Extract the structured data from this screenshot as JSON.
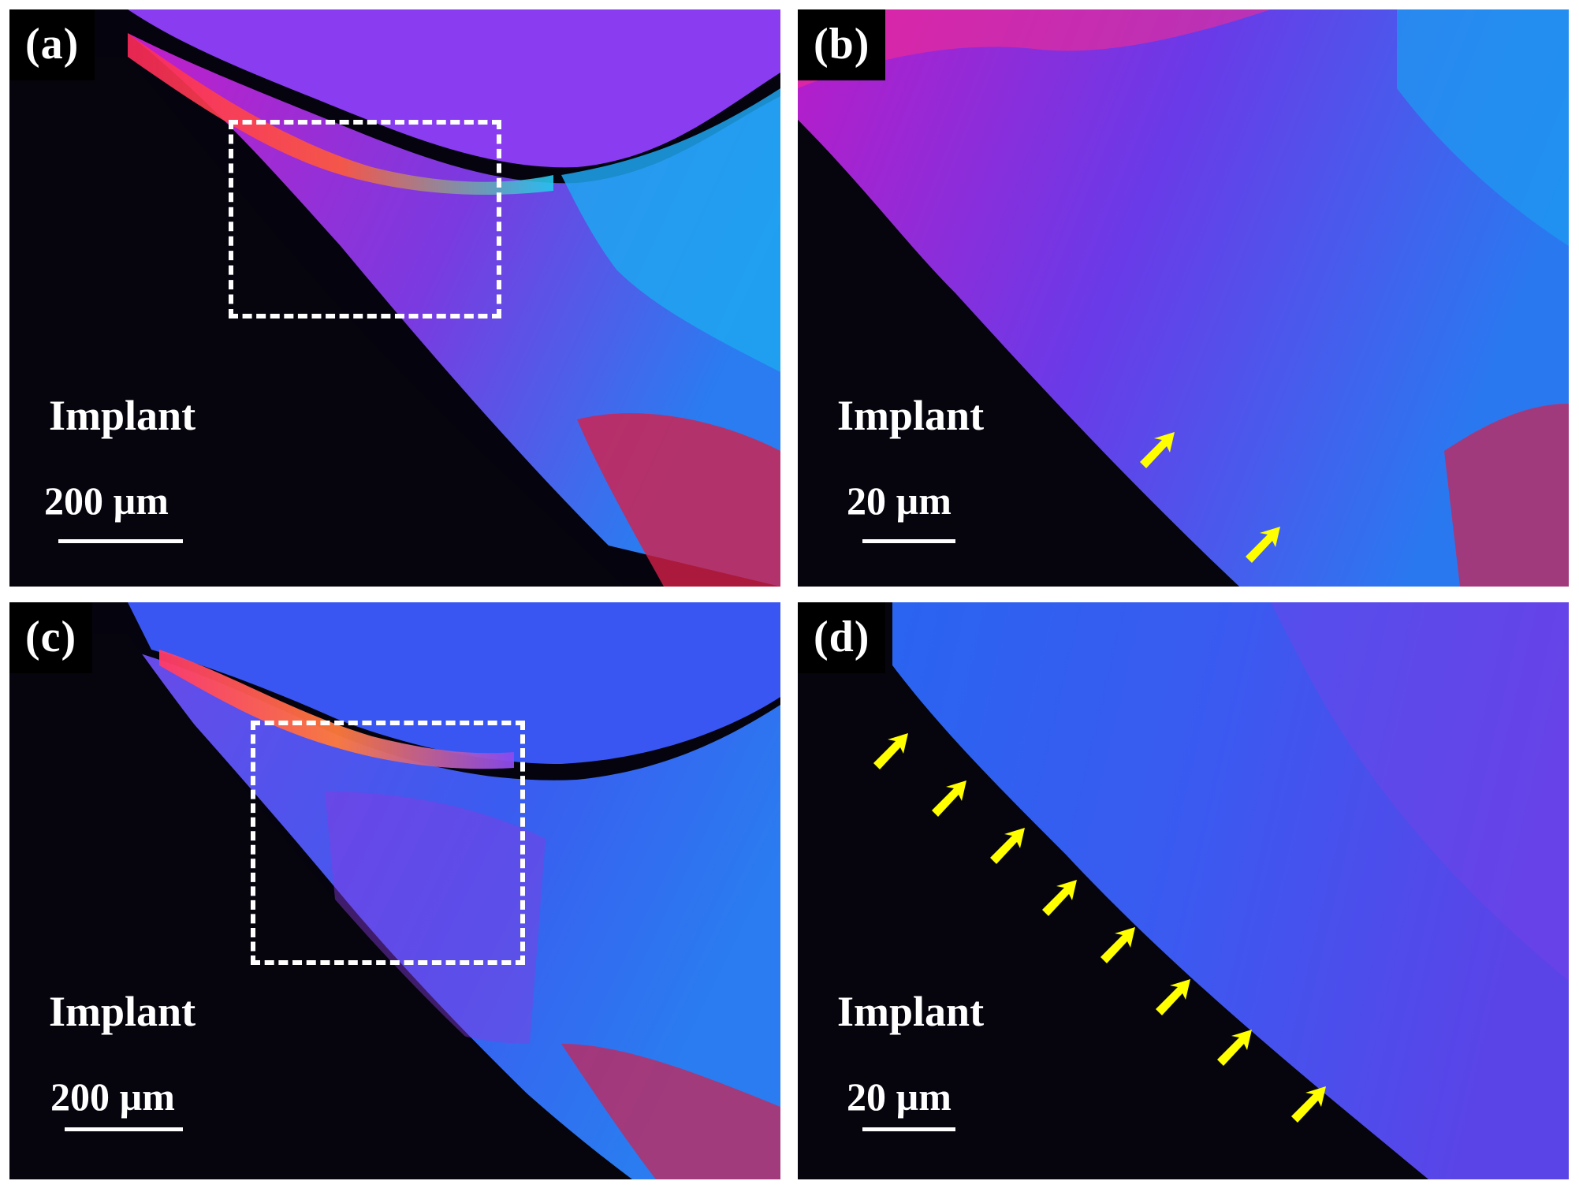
{
  "panels": [
    {
      "label": "(a)",
      "implant": "Implant",
      "scale": "200 µm"
    },
    {
      "label": "(b)",
      "implant": "Implant",
      "scale": "20 µm"
    },
    {
      "label": "(c)",
      "implant": "Implant",
      "scale": "200 µm"
    },
    {
      "label": "(d)",
      "implant": "Implant",
      "scale": "20 µm"
    }
  ],
  "icons": {
    "arrow": "yellow-arrow-icon",
    "box": "dashed-roi-box"
  },
  "colors": {
    "arrow": "#ffff00",
    "box": "#ffffff",
    "implant": "#05040e",
    "magenta": "#d01cd0",
    "blue": "#3a5cf0",
    "red": "#ff2a4a"
  }
}
